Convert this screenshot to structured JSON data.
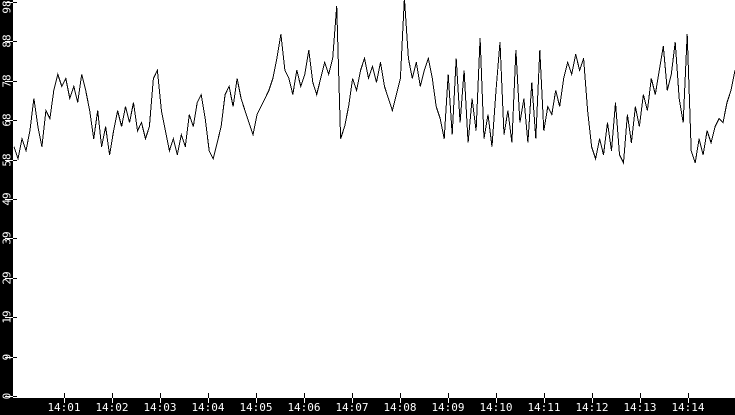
{
  "window": {
    "title": "time-series strip chart",
    "background_color": "#ffffff",
    "axis_bar_color": "#000000",
    "axis_text_color": "#ffffff",
    "line_color": "#000000"
  },
  "chart_data": {
    "type": "line",
    "title": "",
    "xlabel": "",
    "ylabel": "",
    "grid": false,
    "legend": "none",
    "ylim": [
      0,
      98
    ],
    "y_axis": {
      "tick_labels": [
        "98",
        "88",
        "78",
        "68",
        "58",
        "49",
        "39",
        "29",
        "19",
        "9",
        "0"
      ]
    },
    "x_axis": {
      "tick_labels": [
        "14:01",
        "14:02",
        "14:03",
        "14:04",
        "14:05",
        "14:06",
        "14:07",
        "14:08",
        "14:09",
        "14:10",
        "14:11",
        "14:12",
        "14:13",
        "14:14"
      ],
      "tick_interval": "1 minute"
    },
    "series": [
      {
        "name": "value",
        "color": "#000000",
        "note": "values estimated from pixels; evenly sampled across visible width; spikes at ~14:06.6 and ~14:08.1 are clipped at top of plot",
        "values": [
          62,
          59,
          64,
          61,
          66,
          74,
          67,
          62,
          71,
          69,
          76,
          80,
          77,
          79,
          74,
          77,
          73,
          80,
          76,
          71,
          64,
          71,
          62,
          67,
          60,
          66,
          71,
          67,
          72,
          68,
          73,
          66,
          68,
          64,
          67,
          79,
          81,
          71,
          66,
          61,
          64,
          60,
          65,
          62,
          70,
          67,
          73,
          75,
          69,
          61,
          59,
          63,
          67,
          75,
          77,
          72,
          79,
          74,
          71,
          68,
          65,
          70,
          72,
          74,
          76,
          79,
          84,
          90,
          81,
          79,
          75,
          81,
          77,
          80,
          86,
          78,
          75,
          79,
          83,
          80,
          84,
          97,
          64,
          67,
          72,
          79,
          76,
          81,
          84,
          79,
          82,
          78,
          83,
          77,
          74,
          71,
          75,
          79,
          99,
          84,
          79,
          83,
          77,
          81,
          84,
          79,
          72,
          69,
          64,
          80,
          65,
          84,
          68,
          81,
          63,
          74,
          66,
          89,
          64,
          70,
          62,
          76,
          88,
          65,
          71,
          63,
          86,
          68,
          74,
          63,
          78,
          64,
          86,
          66,
          72,
          70,
          76,
          72,
          79,
          83,
          80,
          85,
          81,
          84,
          71,
          62,
          59,
          64,
          60,
          68,
          61,
          73,
          60,
          58,
          70,
          63,
          72,
          67,
          75,
          71,
          79,
          75,
          81,
          87,
          76,
          80,
          88,
          74,
          68,
          90,
          61,
          58,
          64,
          60,
          66,
          63,
          67,
          69,
          68,
          73,
          76,
          81
        ]
      }
    ]
  }
}
